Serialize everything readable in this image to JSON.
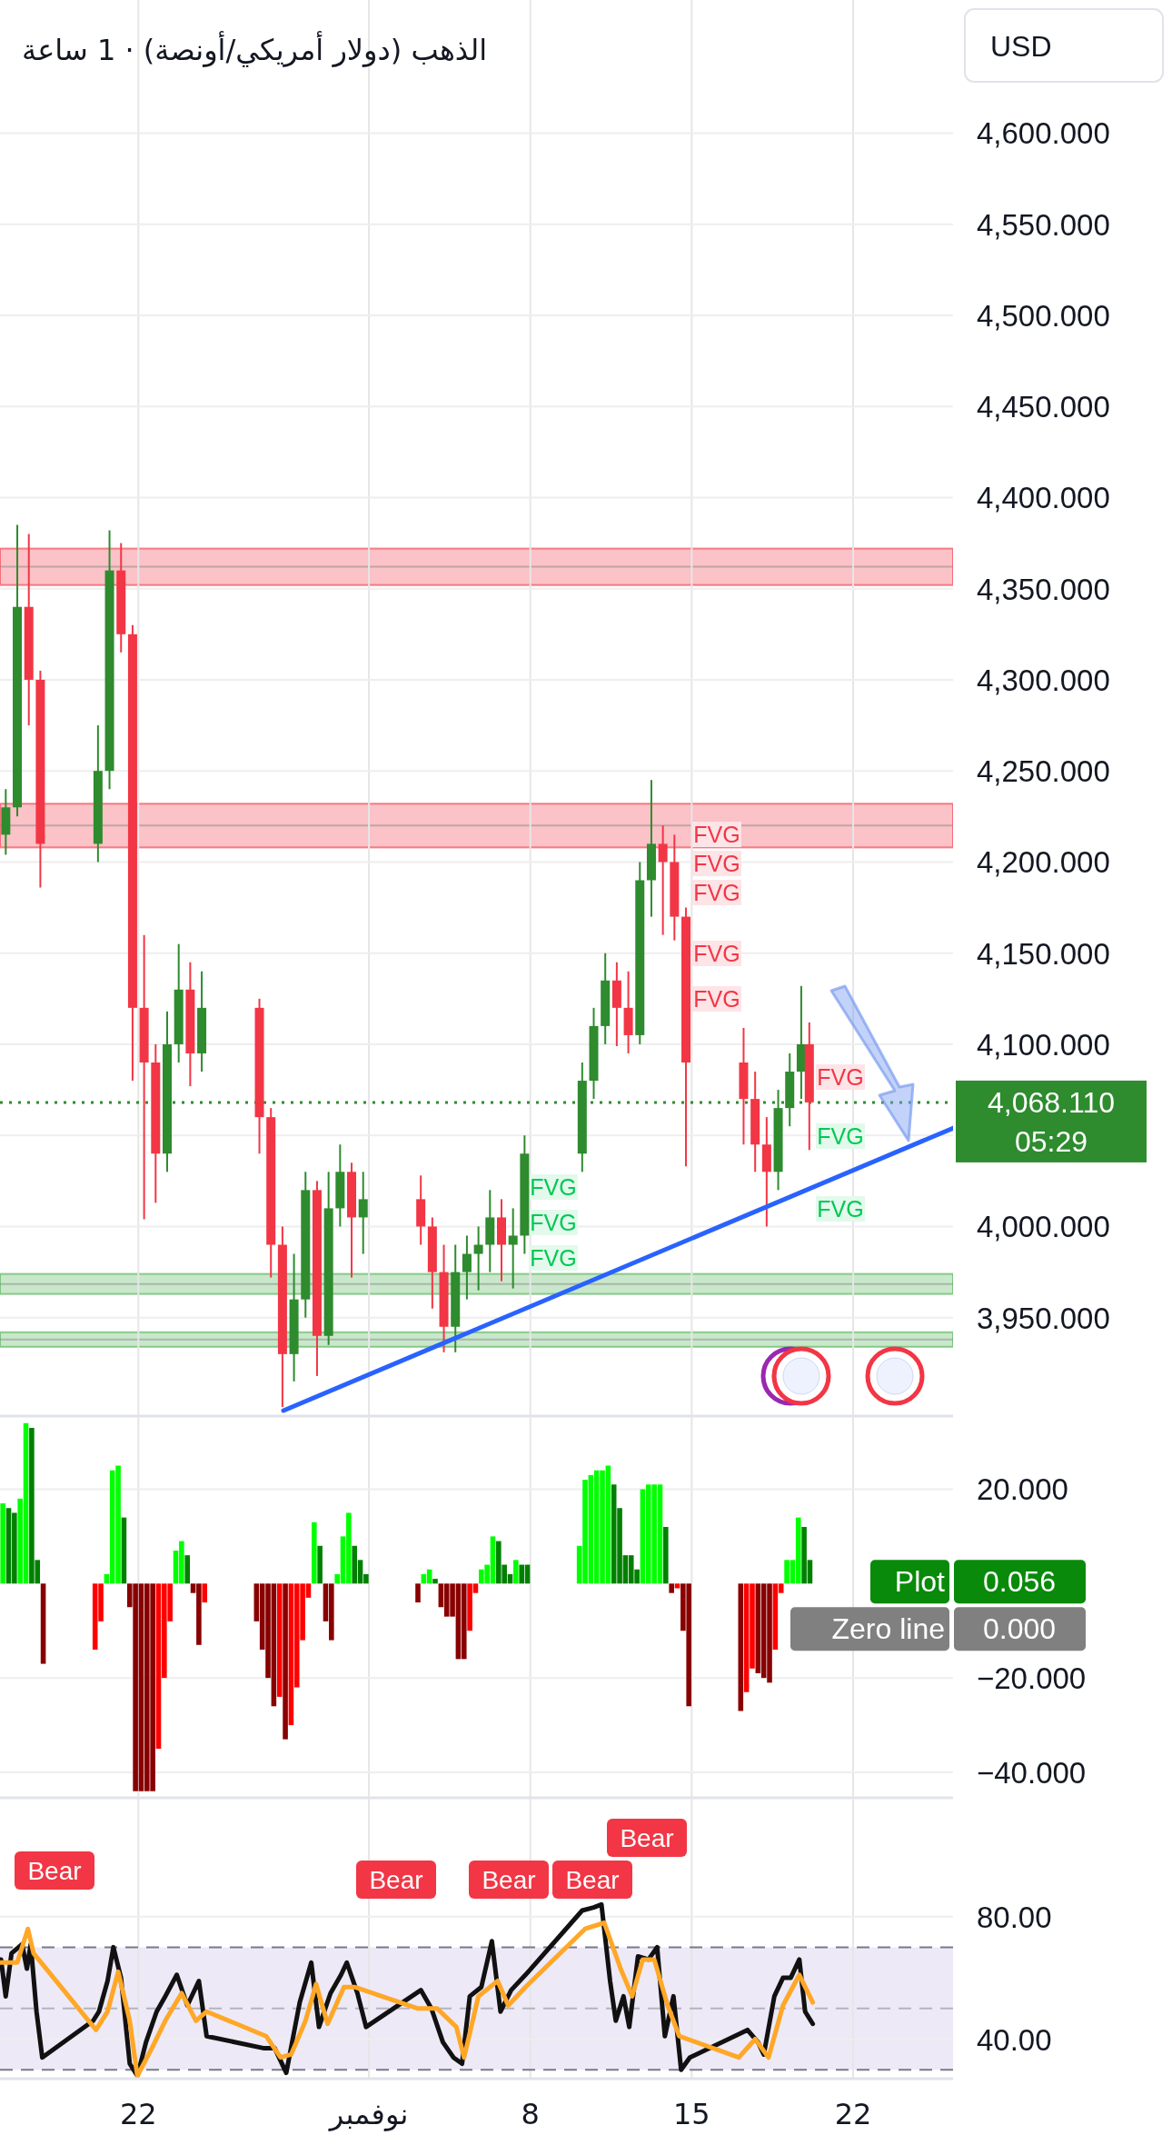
{
  "chart_data": [
    {
      "type": "candlestick",
      "title": "الذهب (دولار أمريكي/أونصة) · 1 ساعة",
      "x": [
        "--10-16T06:00",
        "--10-16T18:00",
        "--10-17T06:00",
        "--10-17T18:00",
        "--10-20T06:00",
        "--10-20T18:00",
        "--10-21T06:00",
        "--10-21T18:00",
        "--10-22T06:00",
        "--10-22T18:00",
        "--10-23T06:00",
        "--10-23T18:00",
        "--10-24T06:00",
        "--10-24T18:00",
        "--10-27T06:00",
        "--10-27T18:00",
        "--10-28T06:00",
        "--10-28T18:00",
        "--10-29T06:00",
        "--10-29T18:00",
        "--10-30T06:00",
        "--10-30T18:00",
        "--10-31T06:00",
        "--10-31T18:00",
        "--11-03T06:00",
        "--11-03T18:00",
        "--11-04T06:00",
        "--11-04T18:00",
        "--11-05T06:00",
        "--11-05T18:00",
        "--11-06T06:00",
        "--11-06T18:00",
        "--11-07T06:00",
        "--11-07T18:00",
        "--11-10T06:00",
        "--11-10T18:00",
        "--11-11T06:00",
        "--11-11T18:00",
        "--11-12T06:00",
        "--11-12T18:00",
        "--11-13T06:00",
        "--11-13T18:00",
        "--11-14T06:00",
        "--11-14T18:00",
        "--11-17T06:00",
        "--11-17T18:00",
        "--11-18T06:00",
        "--11-18T18:00",
        "--11-19T06:00",
        "--11-19T18:00",
        "--11-20T02:24"
      ],
      "ohlc": [
        [
          4215,
          4240,
          4204,
          4230
        ],
        [
          4230,
          4385,
          4225,
          4340
        ],
        [
          4340,
          4380,
          4275,
          4300
        ],
        [
          4300,
          4305,
          4186,
          4210
        ],
        [
          4210,
          4275,
          4200,
          4250
        ],
        [
          4250,
          4382,
          4240,
          4360
        ],
        [
          4360,
          4375,
          4315,
          4325
        ],
        [
          4325,
          4330,
          4080,
          4120
        ],
        [
          4120,
          4160,
          4004,
          4090
        ],
        [
          4090,
          4100,
          4013,
          4040
        ],
        [
          4040,
          4118,
          4030,
          4100
        ],
        [
          4100,
          4155,
          4090,
          4130
        ],
        [
          4130,
          4145,
          4077,
          4095
        ],
        [
          4095,
          4140,
          4085,
          4120
        ],
        [
          4120,
          4125,
          4040,
          4060
        ],
        [
          4060,
          4065,
          3972,
          3990
        ],
        [
          3990,
          4000,
          3901,
          3930
        ],
        [
          3930,
          3985,
          3915,
          3960
        ],
        [
          3960,
          4030,
          3950,
          4020
        ],
        [
          4020,
          4025,
          3918,
          3940
        ],
        [
          3940,
          4030,
          3935,
          4010
        ],
        [
          4010,
          4045,
          4000,
          4030
        ],
        [
          4030,
          4035,
          3972,
          4005
        ],
        [
          4005,
          4030,
          3985,
          4015
        ],
        [
          4015,
          4028,
          3990,
          4000
        ],
        [
          4000,
          4005,
          3955,
          3975
        ],
        [
          3975,
          3990,
          3931,
          3945
        ],
        [
          3945,
          3990,
          3931,
          3975
        ],
        [
          3975,
          3995,
          3960,
          3985
        ],
        [
          3985,
          4000,
          3965,
          3990
        ],
        [
          3990,
          4020,
          3975,
          4005
        ],
        [
          4005,
          4015,
          3970,
          3990
        ],
        [
          3990,
          4010,
          3966,
          3995
        ],
        [
          3995,
          4050,
          3985,
          4040
        ],
        [
          4040,
          4090,
          4030,
          4080
        ],
        [
          4080,
          4120,
          4070,
          4110
        ],
        [
          4110,
          4150,
          4100,
          4135
        ],
        [
          4135,
          4145,
          4099,
          4120
        ],
        [
          4120,
          4140,
          4095,
          4105
        ],
        [
          4105,
          4200,
          4100,
          4190
        ],
        [
          4190,
          4245,
          4170,
          4210
        ],
        [
          4210,
          4220,
          4160,
          4200
        ],
        [
          4200,
          4215,
          4157,
          4170
        ],
        [
          4170,
          4175,
          4033,
          4090
        ],
        [
          4090,
          4109,
          4045,
          4070
        ],
        [
          4070,
          4085,
          4030,
          4045
        ],
        [
          4045,
          4060,
          4000,
          4030
        ],
        [
          4030,
          4075,
          4020,
          4065
        ],
        [
          4065,
          4095,
          4055,
          4085
        ],
        [
          4085,
          4132,
          4070,
          4100
        ],
        [
          4100,
          4112,
          4042,
          4068.11
        ]
      ],
      "series": [
        {
          "type": "line",
          "color": "#2962ff",
          "x": [
            "--10-28T07:00",
            "--11-26T08:00"
          ],
          "values": [
            3899,
            4054
          ]
        }
      ],
      "xlim": [
        "--10-16T00:00",
        "--11-26T08:00"
      ],
      "ylim": [
        3896,
        4673
      ],
      "xticks": [
        {
          "value": "--10-22",
          "label": null
        },
        {
          "value": "--11-01",
          "label": null
        },
        {
          "value": "--11-08",
          "label": null
        },
        {
          "value": "--11-15",
          "label": null
        },
        {
          "value": "--11-22",
          "label": null
        }
      ],
      "yticks": [
        {
          "value": 3950,
          "label": "3,950.000"
        },
        {
          "value": 4000,
          "label": "4,000.000"
        },
        {
          "value": 4050,
          "label": null
        },
        {
          "value": 4100,
          "label": "4,100.000"
        },
        {
          "value": 4150,
          "label": "4,150.000"
        },
        {
          "value": 4200,
          "label": "4,200.000"
        },
        {
          "value": 4250,
          "label": "4,250.000"
        },
        {
          "value": 4300,
          "label": "4,300.000"
        },
        {
          "value": 4350,
          "label": "4,350.000"
        },
        {
          "value": 4400,
          "label": "4,400.000"
        },
        {
          "value": 4450,
          "label": "4,450.000"
        },
        {
          "value": 4500,
          "label": "4,500.000"
        },
        {
          "value": 4550,
          "label": "4,550.000"
        },
        {
          "value": 4600,
          "label": "4,600.000"
        }
      ],
      "tick_labels": "y",
      "grid": true,
      "bands": [
        {
          "axis": "y",
          "from": 4352,
          "to": 4372,
          "color": "#f23645"
        },
        {
          "axis": "y",
          "from": 4208,
          "to": 4232,
          "color": "#f23645"
        },
        {
          "axis": "y",
          "from": 3963,
          "to": 3974,
          "color": "#4caf50"
        },
        {
          "axis": "y",
          "from": 3934,
          "to": 3942,
          "color": "#4caf50"
        }
      ],
      "ref_lines": [
        {
          "axis": "y",
          "value": 4068.11,
          "label": "4,068.110",
          "color": "#2e8b2e",
          "line_style": "dotted"
        }
      ],
      "annotations": [
        "USD",
        "05:29",
        "FVG",
        "FVG",
        "FVG",
        "FVG",
        "FVG",
        "FVG",
        "FVG",
        "FVG",
        "FVG",
        "FVG",
        "FVG"
      ]
    },
    {
      "type": "bar",
      "x": [
        "--10-16T03:00",
        "--10-16T09:00",
        "--10-16T15:00",
        "--10-16T21:00",
        "--10-17T03:00",
        "--10-17T09:00",
        "--10-17T15:00",
        "--10-17T21:00",
        "--10-20T03:00",
        "--10-20T09:00",
        "--10-20T15:00",
        "--10-20T21:00",
        "--10-21T03:00",
        "--10-21T09:00",
        "--10-21T15:00",
        "--10-21T21:00",
        "--10-22T03:00",
        "--10-22T09:00",
        "--10-22T15:00",
        "--10-22T21:00",
        "--10-23T03:00",
        "--10-23T09:00",
        "--10-23T15:00",
        "--10-23T21:00",
        "--10-24T03:00",
        "--10-24T09:00",
        "--10-24T15:00",
        "--10-24T21:00",
        "--10-27T03:00",
        "--10-27T09:00",
        "--10-27T15:00",
        "--10-27T21:00",
        "--10-28T03:00",
        "--10-28T09:00",
        "--10-28T15:00",
        "--10-28T21:00",
        "--10-29T03:00",
        "--10-29T09:00",
        "--10-29T15:00",
        "--10-29T21:00",
        "--10-30T03:00",
        "--10-30T09:00",
        "--10-30T15:00",
        "--10-30T21:00",
        "--10-31T03:00",
        "--10-31T09:00",
        "--10-31T15:00",
        "--10-31T21:00",
        "--11-03T03:00",
        "--11-03T09:00",
        "--11-03T15:00",
        "--11-03T21:00",
        "--11-04T03:00",
        "--11-04T09:00",
        "--11-04T15:00",
        "--11-04T21:00",
        "--11-05T03:00",
        "--11-05T09:00",
        "--11-05T15:00",
        "--11-05T21:00",
        "--11-06T03:00",
        "--11-06T09:00",
        "--11-06T15:00",
        "--11-06T21:00",
        "--11-07T03:00",
        "--11-07T09:00",
        "--11-07T15:00",
        "--11-07T21:00",
        "--11-10T03:00",
        "--11-10T09:00",
        "--11-10T15:00",
        "--11-10T21:00",
        "--11-11T03:00",
        "--11-11T09:00",
        "--11-11T15:00",
        "--11-11T21:00",
        "--11-12T03:00",
        "--11-12T09:00",
        "--11-12T15:00",
        "--11-12T21:00",
        "--11-13T03:00",
        "--11-13T09:00",
        "--11-13T15:00",
        "--11-13T21:00",
        "--11-14T03:00",
        "--11-14T09:00",
        "--11-14T15:00",
        "--11-14T21:00",
        "--11-17T03:00",
        "--11-17T09:00",
        "--11-17T15:00",
        "--11-17T21:00",
        "--11-18T03:00",
        "--11-18T09:00",
        "--11-18T15:00",
        "--11-18T21:00",
        "--11-19T03:00",
        "--11-19T09:00",
        "--11-19T15:00",
        "--11-19T21:00",
        "--11-20T03:00"
      ],
      "values": [
        17,
        16,
        15,
        18,
        34,
        33,
        5,
        -17,
        -14,
        -8,
        2,
        24,
        25,
        14,
        -5,
        -44,
        -44,
        -44,
        -44,
        -35,
        -20,
        -8,
        7,
        9,
        6,
        -2,
        -13,
        -4,
        -8,
        -14,
        -20,
        -26,
        -24,
        -33,
        -30,
        -22,
        -12,
        -3,
        13,
        8,
        -8,
        -12,
        2,
        10,
        15,
        8,
        5,
        2,
        -4,
        2,
        3,
        1,
        -5,
        -7,
        -7,
        -16,
        -16,
        -10,
        -2,
        3,
        4,
        10,
        9,
        4,
        2,
        5,
        4,
        4,
        8,
        22,
        23,
        24,
        24,
        25,
        21,
        16,
        6,
        6,
        3,
        20,
        21,
        21,
        21,
        12,
        -2,
        -1,
        -10,
        -26,
        -27,
        -23,
        -18,
        -19,
        -20,
        -21,
        -14,
        -2,
        5,
        5,
        14,
        12,
        5
      ],
      "colors": [
        "#00ff00",
        "#008000",
        "#008000",
        "#00ff00",
        "#00ff00",
        "#008000",
        "#008000",
        "#880000",
        "#ff0000",
        "#ff0000",
        "#00ff00",
        "#00ff00",
        "#00ff00",
        "#008000",
        "#880000",
        "#880000",
        "#880000",
        "#880000",
        "#880000",
        "#ff0000",
        "#ff0000",
        "#ff0000",
        "#00ff00",
        "#00ff00",
        "#008000",
        "#880000",
        "#880000",
        "#ff0000",
        "#880000",
        "#880000",
        "#880000",
        "#880000",
        "#ff0000",
        "#880000",
        "#ff0000",
        "#ff0000",
        "#ff0000",
        "#ff0000",
        "#00ff00",
        "#008000",
        "#880000",
        "#880000",
        "#00ff00",
        "#00ff00",
        "#00ff00",
        "#008000",
        "#008000",
        "#008000",
        "#880000",
        "#00ff00",
        "#00ff00",
        "#008000",
        "#880000",
        "#880000",
        "#880000",
        "#880000",
        "#880000",
        "#ff0000",
        "#ff0000",
        "#00ff00",
        "#00ff00",
        "#00ff00",
        "#008000",
        "#008000",
        "#008000",
        "#00ff00",
        "#008000",
        "#008000",
        "#00ff00",
        "#00ff00",
        "#00ff00",
        "#00ff00",
        "#00ff00",
        "#00ff00",
        "#008000",
        "#008000",
        "#008000",
        "#008000",
        "#008000",
        "#00ff00",
        "#00ff00",
        "#00ff00",
        "#00ff00",
        "#008000",
        "#880000",
        "#ff0000",
        "#880000",
        "#880000",
        "#880000",
        "#ff0000",
        "#ff0000",
        "#880000",
        "#880000",
        "#880000",
        "#ff0000",
        "#ff0000",
        "#00ff00",
        "#00ff00",
        "#00ff00",
        "#008000",
        "#008000"
      ],
      "xlim": [
        "--10-16T00:00",
        "--11-26T08:00"
      ],
      "ylim": [
        -45.4,
        35.5
      ],
      "xticks": [
        {
          "value": "--10-22",
          "label": null
        },
        {
          "value": "--11-01",
          "label": null
        },
        {
          "value": "--11-08",
          "label": null
        },
        {
          "value": "--11-15",
          "label": null
        },
        {
          "value": "--11-22",
          "label": null
        }
      ],
      "yticks": [
        {
          "value": -40,
          "label": "−40.000"
        },
        {
          "value": -20,
          "label": "−20.000"
        },
        {
          "value": 20,
          "label": "20.000"
        }
      ],
      "tick_labels": "y",
      "grid": true,
      "annotations": [
        "Plot",
        "0.056",
        "Zero line",
        "0.000"
      ]
    },
    {
      "type": "line",
      "series": [
        {
          "color": "#111111",
          "x": [
            "--10-16T01:00",
            "--10-16T06:00",
            "--10-16T12:00",
            "--10-16T23:00",
            "--10-17T04:00",
            "--10-17T08:00",
            "--10-17T14:00",
            "--10-17T20:00",
            "--10-20T01:00",
            "--10-20T07:00",
            "--10-20T16:00",
            "--10-20T22:00",
            "--10-21T06:00",
            "--10-21T15:00",
            "--10-21T23:00",
            "--10-22T08:00",
            "--10-22T19:00",
            "--10-23T04:00",
            "--10-23T16:00",
            "--10-24T03:00",
            "--10-24T15:00",
            "--10-24T23:00",
            "--10-27T11:00",
            "--10-27T22:00",
            "--10-28T10:00",
            "--10-29T00:00",
            "--10-29T12:00",
            "--10-29T20:00",
            "--10-30T08:00",
            "--10-30T19:00",
            "--10-31T01:00",
            "--10-31T12:00",
            "--10-31T21:00",
            "--11-03T06:00",
            "--11-03T17:00",
            "--11-04T05:00",
            "--11-04T16:00",
            "--11-05T01:00",
            "--11-05T09:00",
            "--11-05T21:00",
            "--11-06T08:00",
            "--11-06T17:00",
            "--11-07T04:00",
            "--11-07T19:00",
            "--11-10T06:00",
            "--11-10T18:00",
            "--11-11T02:00",
            "--11-11T11:00",
            "--11-11T17:00",
            "--11-12T01:00",
            "--11-12T07:00",
            "--11-12T16:00",
            "--11-13T03:00",
            "--11-13T12:00",
            "--11-13T20:00",
            "--11-14T05:00",
            "--11-14T13:00",
            "--11-14T22:00",
            "--11-17T10:00",
            "--11-17T21:00",
            "--11-18T03:00",
            "--11-18T14:00",
            "--11-18T23:00",
            "--11-19T07:00",
            "--11-19T16:00",
            "--11-19T22:00",
            "--11-20T06:00"
          ],
          "values": [
            66,
            54,
            68,
            71,
            63,
            71,
            49,
            34,
            46,
            49,
            59,
            70,
            60,
            32,
            28,
            39,
            49,
            54,
            61,
            51,
            59,
            41,
            37,
            37,
            29,
            52,
            65,
            44,
            55,
            61,
            65,
            55,
            44,
            56,
            50,
            39,
            34,
            32,
            54,
            57,
            72,
            49,
            56,
            61,
            82,
            83,
            84,
            59,
            46,
            54,
            44,
            67,
            66,
            70,
            41,
            54,
            30,
            34,
            43,
            39,
            35,
            54,
            60,
            60,
            66,
            49,
            45
          ]
        },
        {
          "color": "#ffa726",
          "x": [
            "--10-16T01:00",
            "--10-16T18:00",
            "--10-17T05:00",
            "--10-17T11:00",
            "--10-20T04:00",
            "--10-20T16:00",
            "--10-21T03:00",
            "--10-21T15:00",
            "--10-21T23:00",
            "--10-22T14:00",
            "--10-23T04:00",
            "--10-23T21:00",
            "--10-24T12:00",
            "--10-24T23:00",
            "--10-27T13:00",
            "--10-28T04:00",
            "--10-28T15:00",
            "--10-29T06:00",
            "--10-29T17:00",
            "--10-30T05:00",
            "--10-30T22:00",
            "--10-31T09:00",
            "--11-03T03:00",
            "--11-03T23:00",
            "--11-04T19:00",
            "--11-05T03:00",
            "--11-05T18:00",
            "--11-06T14:00",
            "--11-07T01:00",
            "--11-07T19:00",
            "--11-10T09:00",
            "--11-11T05:00",
            "--11-11T22:00",
            "--11-12T10:00",
            "--11-12T21:00",
            "--11-13T09:00",
            "--11-13T23:00",
            "--11-14T11:00",
            "--11-17T01:00",
            "--11-17T18:00",
            "--11-18T08:00",
            "--11-18T23:00",
            "--11-19T16:00",
            "--11-20T06:00"
          ],
          "values": [
            65,
            65,
            76,
            68,
            43,
            49,
            62,
            46,
            28,
            37,
            46,
            55,
            46,
            49,
            41,
            34,
            35,
            46,
            58,
            45,
            57,
            57,
            50,
            50,
            44,
            34,
            54,
            59,
            51,
            57,
            76,
            78,
            63,
            54,
            66,
            66,
            51,
            41,
            34,
            40,
            34,
            51,
            61,
            52
          ]
        }
      ],
      "xlim": [
        "--10-16T00:00",
        "--11-26T08:00"
      ],
      "ylim": [
        27.1,
        118.8
      ],
      "xticks": [
        {
          "value": "--10-22",
          "label": "22"
        },
        {
          "value": "--11-01",
          "label": "نوفمبر"
        },
        {
          "value": "--11-08",
          "label": "8"
        },
        {
          "value": "--11-15",
          "label": "15"
        },
        {
          "value": "--11-22",
          "label": "22"
        }
      ],
      "yticks": [
        {
          "value": 40,
          "label": "40.00"
        },
        {
          "value": 80,
          "label": "80.00"
        }
      ],
      "grid": true,
      "bands": [
        {
          "axis": "y",
          "from": 30,
          "to": 70,
          "color": "#ede9f7"
        }
      ],
      "ref_lines": [
        {
          "axis": "y",
          "value": 70,
          "color": "#787b86",
          "line_style": "dashed"
        },
        {
          "axis": "y",
          "value": 50,
          "color": "#b2b5be",
          "line_style": "dashed"
        },
        {
          "axis": "y",
          "value": 30,
          "color": "#787b86",
          "line_style": "dashed"
        }
      ],
      "annotations": [
        "Bear",
        "Bear",
        "Bear",
        "Bear",
        "Bear"
      ]
    }
  ]
}
